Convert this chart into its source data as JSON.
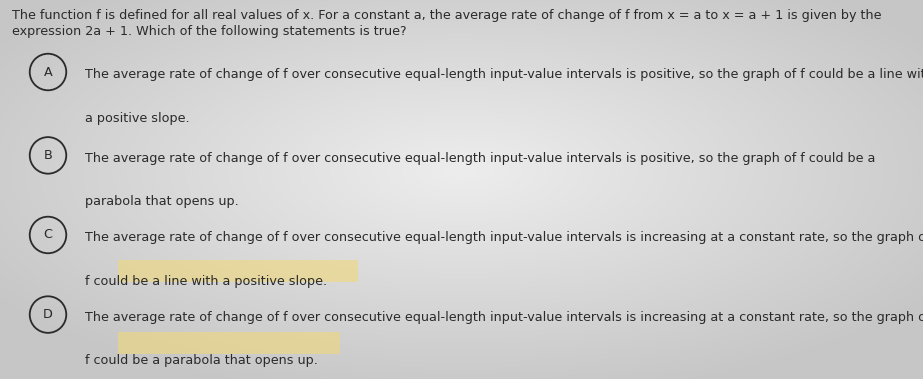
{
  "background_color": "#c8c8c8",
  "center_bg_color": "#e8e8e8",
  "prompt_text_line1": "The function f is defined for all real values of x. For a constant a, the average rate of change of f from x = a to x = a + 1 is given by the",
  "prompt_text_line2": "expression 2a + 1. Which of the following statements is true?",
  "choices": [
    {
      "label": "A",
      "line1": "The average rate of change of f over consecutive equal-length input-value intervals is positive, so the graph of f could be a line with",
      "line2": "a positive slope."
    },
    {
      "label": "B",
      "line1": "The average rate of change of f over consecutive equal-length input-value intervals is positive, so the graph of f could be a",
      "line2": "parabola that opens up."
    },
    {
      "label": "C",
      "line1": "The average rate of change of f over consecutive equal-length input-value intervals is increasing at a constant rate, so the graph of",
      "line2": "f could be a line with a positive slope."
    },
    {
      "label": "D",
      "line1": "The average rate of change of f over consecutive equal-length input-value intervals is increasing at a constant rate, so the graph of",
      "line2": "f could be a parabola that opens up."
    }
  ],
  "highlight_color": "#f0d878",
  "text_color": "#2a2a2a",
  "font_size_prompt": 9.2,
  "font_size_choice": 9.2,
  "fig_width": 9.23,
  "fig_height": 3.79
}
